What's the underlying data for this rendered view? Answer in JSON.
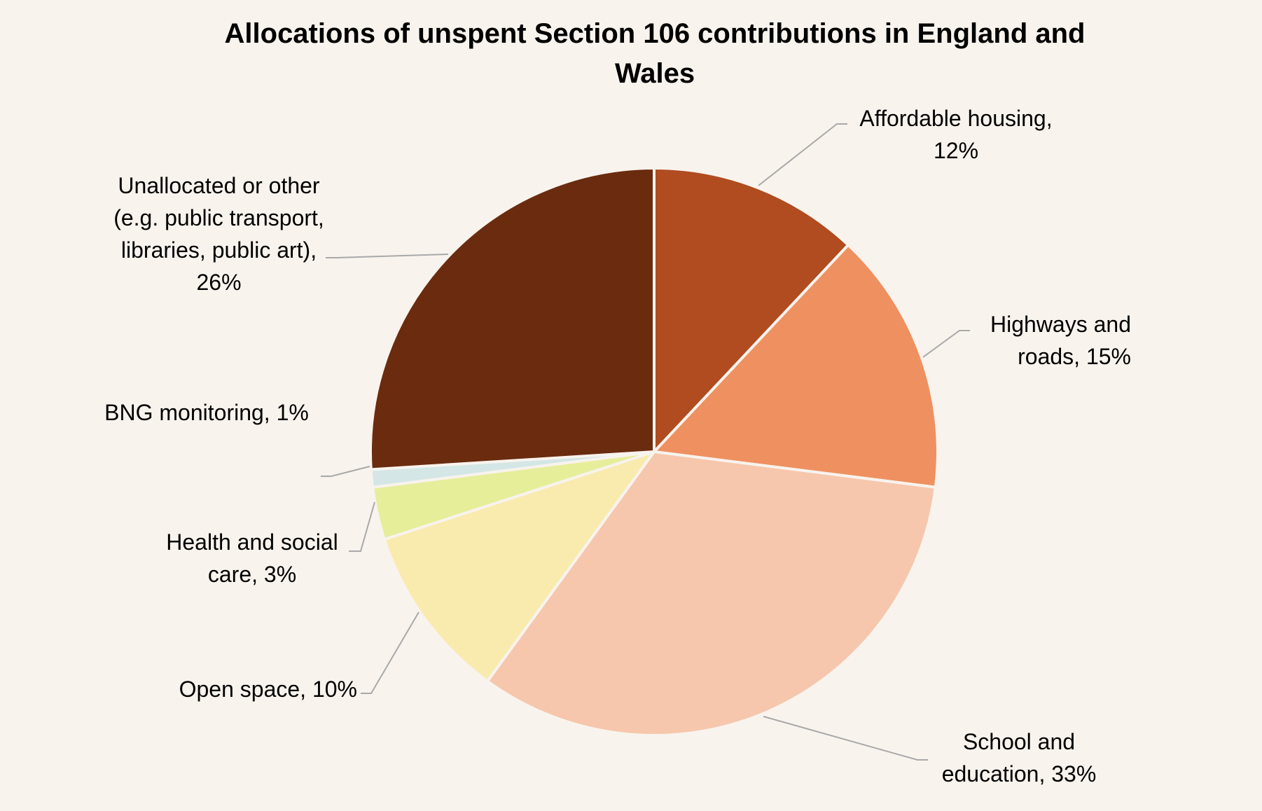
{
  "chart_data": {
    "type": "pie",
    "title": "Allocations of unspent Section 106 contributions in England and Wales",
    "slices": [
      {
        "name": "Affordable housing",
        "value": 12,
        "label": "Affordable housing, 12%",
        "color": "#b04c20"
      },
      {
        "name": "Highways and roads",
        "value": 15,
        "label": "Highways and roads, 15%",
        "color": "#ef9060"
      },
      {
        "name": "School and education",
        "value": 33,
        "label": "School and education, 33%",
        "color": "#f6c7ad"
      },
      {
        "name": "Open space",
        "value": 10,
        "label": "Open space, 10%",
        "color": "#f9ebae"
      },
      {
        "name": "Health and social care",
        "value": 3,
        "label": "Health and social care, 3%",
        "color": "#e6ee9a"
      },
      {
        "name": "BNG monitoring",
        "value": 1,
        "label": "BNG monitoring, 1%",
        "color": "#d4e6e6"
      },
      {
        "name": "Unallocated or other (e.g. public transport, libraries, public art)",
        "value": 26,
        "label": "Unallocated or other (e.g. public transport, libraries, public art), 26%",
        "color": "#6a2b0f"
      }
    ],
    "legend": "none"
  }
}
